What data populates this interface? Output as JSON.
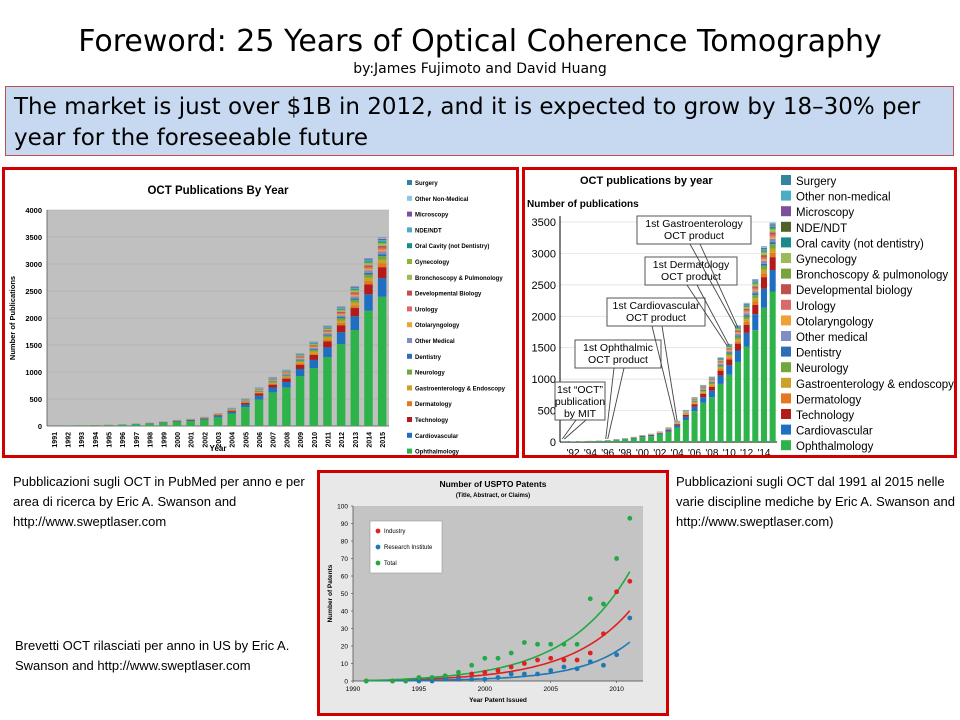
{
  "slide": {
    "title": "Foreword: 25 Years of Optical Coherence Tomography",
    "byline": "by:James Fujimoto and David Huang",
    "banner": "The market is just over $1B in 2012, and it is expected to grow by 18–30% per year for the foreseeable future",
    "caption_left": "Pubblicazioni sugli OCT in PubMed per anno e per area di ricerca  by Eric A. Swanson and http://www.sweptlaser.com",
    "caption_right": "Pubblicazioni sugli OCT dal 1991 al 2015 nelle varie discipline mediche by Eric A. Swanson and http://www.sweptlaser.com)",
    "caption_bottom": "Brevetti OCT rilasciati per anno in US by Eric A. Swanson and http://www.sweptlaser.com"
  },
  "chart_data": [
    {
      "type": "bar",
      "stacked": true,
      "title": "OCT Publications By Year",
      "xlabel": "Year",
      "ylabel": "Number of Publications",
      "ylim": [
        0,
        4000
      ],
      "yticks": [
        0,
        500,
        1000,
        1500,
        2000,
        2500,
        3000,
        3500,
        4000
      ],
      "categories": [
        "1991",
        "1992",
        "1993",
        "1994",
        "1995",
        "1996",
        "1997",
        "1998",
        "1999",
        "2000",
        "2001",
        "2002",
        "2003",
        "2004",
        "2005",
        "2006",
        "2007",
        "2008",
        "2009",
        "2010",
        "2011",
        "2012",
        "2013",
        "2014",
        "2015"
      ],
      "totals": [
        5,
        8,
        12,
        18,
        22,
        30,
        45,
        60,
        80,
        110,
        130,
        165,
        230,
        330,
        500,
        700,
        890,
        1020,
        1320,
        1530,
        1820,
        2170,
        2540,
        3050,
        3420
      ],
      "legend_position": "right",
      "legend": [
        "Surgery",
        "Other Non-Medical",
        "Microscopy",
        "NDE/NDT",
        "Oral Cavity (not Dentistry)",
        "Gynecology",
        "Bronchoscopy & Pulmonology",
        "Developmental Biology",
        "Urology",
        "Otolaryngology",
        "Other Medical",
        "Dentistry",
        "Neurology",
        "Gastroenterology & Endoscopy",
        "Dermatology",
        "Technology",
        "Cardiovascular",
        "Ophthalmology"
      ],
      "series": [
        {
          "name": "Ophthalmology",
          "color": "#2eb34a",
          "share": 0.7
        },
        {
          "name": "Cardiovascular",
          "color": "#1e6fc2",
          "share": 0.1
        },
        {
          "name": "Technology",
          "color": "#b31b1b",
          "share": 0.06
        },
        {
          "name": "Dermatology",
          "color": "#e3781e",
          "share": 0.02
        },
        {
          "name": "Gastroenterology & Endoscopy",
          "color": "#c9a227",
          "share": 0.02
        },
        {
          "name": "Neurology",
          "color": "#70a83b",
          "share": 0.02
        },
        {
          "name": "Dentistry",
          "color": "#2d6eb5",
          "share": 0.01
        },
        {
          "name": "Other Medical",
          "color": "#7f8ec2",
          "share": 0.015
        },
        {
          "name": "Otolaryngology",
          "color": "#f0a035",
          "share": 0.01
        },
        {
          "name": "Urology",
          "color": "#d86a6a",
          "share": 0.01
        },
        {
          "name": "Developmental Biology",
          "color": "#c0504d",
          "share": 0.01
        },
        {
          "name": "Bronchoscopy & Pulmonology",
          "color": "#9bbb59",
          "share": 0.01
        },
        {
          "name": "Gynecology",
          "color": "#8db43a",
          "share": 0.008
        },
        {
          "name": "Oral Cavity (not Dentistry)",
          "color": "#1a8a8a",
          "share": 0.007
        },
        {
          "name": "NDE/NDT",
          "color": "#4bacc6",
          "share": 0.007
        },
        {
          "name": "Microscopy",
          "color": "#7e4f9c",
          "share": 0.006
        },
        {
          "name": "Other Non-Medical",
          "color": "#8ec5e0",
          "share": 0.004
        },
        {
          "name": "Surgery",
          "color": "#31859c",
          "share": 0.003
        }
      ]
    },
    {
      "type": "bar",
      "stacked": true,
      "title": "OCT publications by year",
      "ylabel": "Number of publications",
      "ylim": [
        0,
        3500
      ],
      "yticks": [
        0,
        500,
        1000,
        1500,
        2000,
        2500,
        3000,
        3500
      ],
      "xtick_labels": [
        "'92",
        "'94",
        "'96",
        "'98",
        "'00",
        "'02",
        "'04",
        "'06",
        "'08",
        "'10",
        "'12",
        "'14"
      ],
      "categories": [
        "1991",
        "1992",
        "1993",
        "1994",
        "1995",
        "1996",
        "1997",
        "1998",
        "1999",
        "2000",
        "2001",
        "2002",
        "2003",
        "2004",
        "2005",
        "2006",
        "2007",
        "2008",
        "2009",
        "2010",
        "2011",
        "2012",
        "2013",
        "2014",
        "2015"
      ],
      "totals": [
        5,
        8,
        12,
        18,
        22,
        30,
        45,
        60,
        80,
        110,
        130,
        165,
        230,
        330,
        500,
        700,
        890,
        1020,
        1320,
        1530,
        1820,
        2170,
        2540,
        3050,
        3420
      ],
      "legend_position": "right",
      "legend": [
        "Surgery",
        "Other non-medical",
        "Microscopy",
        "NDE/NDT",
        "Oral cavity (not dentistry)",
        "Gynecology",
        "Bronchoscopy & pulmonology",
        "Developmental biology",
        "Urology",
        "Otolaryngology",
        "Other medical",
        "Dentistry",
        "Neurology",
        "Gastroenterology & endoscopy",
        "Dermatology",
        "Technology",
        "Cardiovascular",
        "Ophthalmology"
      ],
      "legend_colors": [
        "#31859c",
        "#4bacc6",
        "#7e4f9c",
        "#4f6228",
        "#1a8a8a",
        "#9bbb59",
        "#7aa33a",
        "#c0504d",
        "#d86a6a",
        "#f0a035",
        "#7f8ec2",
        "#2d6eb5",
        "#70a83b",
        "#c9a227",
        "#e3781e",
        "#b31b1b",
        "#1e6fc2",
        "#2eb34a"
      ],
      "annotations": [
        {
          "text": "1st “OCT” publication by MIT",
          "year": 1991
        },
        {
          "text": "1st Ophthalmic OCT product",
          "year": 1996
        },
        {
          "text": "1st Cardiovascular OCT product",
          "year": 2004
        },
        {
          "text": "1st Dermatology OCT product",
          "year": 2010
        },
        {
          "text": "1st Gastroenterology OCT product",
          "year": 2011
        }
      ]
    },
    {
      "type": "scatter",
      "title": "Number of USPTO Patents",
      "subtitle": "(Title, Abstract, or Claims)",
      "xlabel": "Year Patent Issued",
      "ylabel": "Number of Patents",
      "xlim": [
        1990,
        2012
      ],
      "ylim": [
        0,
        100
      ],
      "xticks": [
        1990,
        1995,
        2000,
        2005,
        2010
      ],
      "yticks": [
        0,
        10,
        20,
        30,
        40,
        50,
        60,
        70,
        80,
        90,
        100
      ],
      "grid": false,
      "legend_position": "top-left",
      "series": [
        {
          "name": "Industry",
          "color": "#e02020",
          "x": [
            1991,
            1993,
            1994,
            1995,
            1996,
            1997,
            1998,
            1999,
            2000,
            2001,
            2002,
            2003,
            2004,
            2005,
            2006,
            2007,
            2008,
            2009,
            2010,
            2011
          ],
          "y": [
            0,
            0,
            0,
            1,
            1,
            2,
            2,
            4,
            5,
            6,
            8,
            10,
            12,
            13,
            12,
            12,
            16,
            27,
            51,
            57
          ]
        },
        {
          "name": "Research Institute",
          "color": "#1f77b4",
          "x": [
            1995,
            1996,
            1997,
            1998,
            1999,
            2000,
            2001,
            2002,
            2003,
            2004,
            2005,
            2006,
            2007,
            2008,
            2009,
            2010,
            2011
          ],
          "y": [
            0,
            0,
            1,
            1,
            1,
            1,
            2,
            4,
            4,
            4,
            6,
            8,
            7,
            11,
            9,
            15,
            36
          ]
        },
        {
          "name": "Total",
          "color": "#22a845",
          "x": [
            1991,
            1993,
            1994,
            1995,
            1996,
            1997,
            1998,
            1999,
            2000,
            2001,
            2002,
            2003,
            2004,
            2005,
            2006,
            2007,
            2008,
            2009,
            2010,
            2011
          ],
          "y": [
            0,
            0,
            0,
            2,
            2,
            3,
            5,
            9,
            13,
            13,
            16,
            22,
            21,
            21,
            21,
            21,
            47,
            44,
            70,
            93
          ]
        }
      ]
    }
  ]
}
